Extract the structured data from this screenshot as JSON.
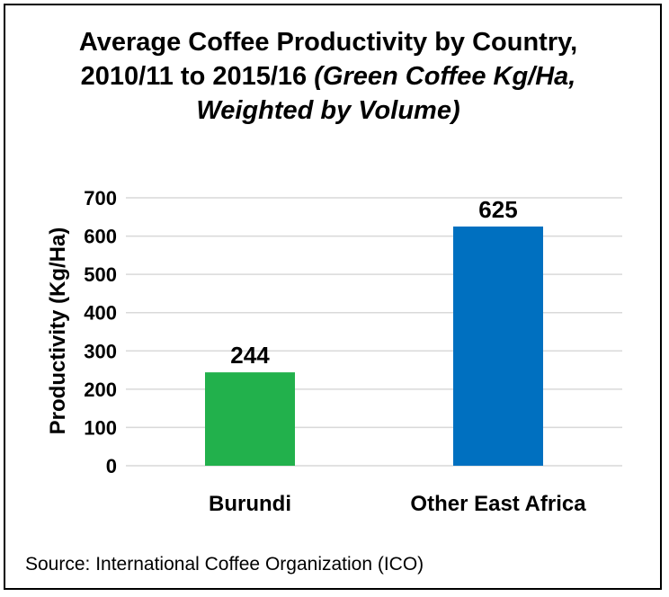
{
  "chart_data": {
    "type": "bar",
    "title": "Average Coffee Productivity by Country, 2010/11 to 2015/16",
    "title_italic_part": "(Green Coffee Kg/Ha, Weighted by Volume)",
    "xlabel": "",
    "ylabel": "Productivity (Kg/Ha)",
    "categories": [
      "Burundi",
      "Other East Africa"
    ],
    "values": [
      244,
      625
    ],
    "data_labels": [
      "244",
      "625"
    ],
    "colors": [
      "#22b14c",
      "#0070c0"
    ],
    "ylim": [
      0,
      700
    ],
    "yticks": [
      0,
      100,
      200,
      300,
      400,
      500,
      600,
      700
    ],
    "grid": true,
    "legend": "none"
  },
  "source": "Source: International Coffee Organization (ICO)"
}
